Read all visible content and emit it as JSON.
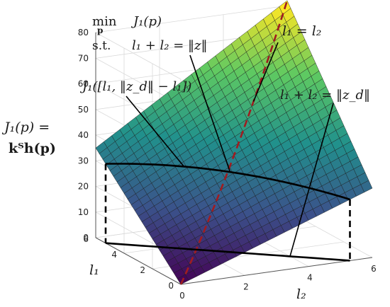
{
  "chart_data": {
    "type": "surface",
    "title": "",
    "problem": {
      "min_label": "min",
      "min_var": "p",
      "objective": "J₁(p)",
      "st_label": "s.t.",
      "constraint": "l₁ + l₂ = ‖z‖"
    },
    "zlabel_line1": "J₁(p) =",
    "zlabel_line2": "kᵀh(p)",
    "xlabel": "l₂",
    "ylabel": "l₁",
    "xlim": [
      0,
      6
    ],
    "ylim": [
      0,
      6
    ],
    "zlim": [
      0,
      80
    ],
    "x_ticks": [
      0,
      2,
      4,
      6
    ],
    "y_ticks": [
      0,
      2,
      4,
      6
    ],
    "z_ticks": [
      0,
      10,
      20,
      30,
      40,
      50,
      60,
      70,
      80
    ],
    "corner_values": {
      "l1_0_l2_0": 0,
      "l1_6_l2_0": 35,
      "l1_0_l2_6": 27,
      "l1_6_l2_6": 82
    },
    "annotations": [
      {
        "id": "diag",
        "text": "l₁ = l₂"
      },
      {
        "id": "constraint_curve",
        "text": "J₁([l₁, ‖z_d‖ − l₁])"
      },
      {
        "id": "constraint_line",
        "text": "l₁ + l₂ = ‖z_d‖"
      }
    ],
    "constraint_sum": 5.3,
    "colormap": [
      "#440154",
      "#3b528b",
      "#21918c",
      "#5ec962",
      "#fde725"
    ],
    "curve_color": "#000000",
    "diag_color": "#a01c20"
  }
}
